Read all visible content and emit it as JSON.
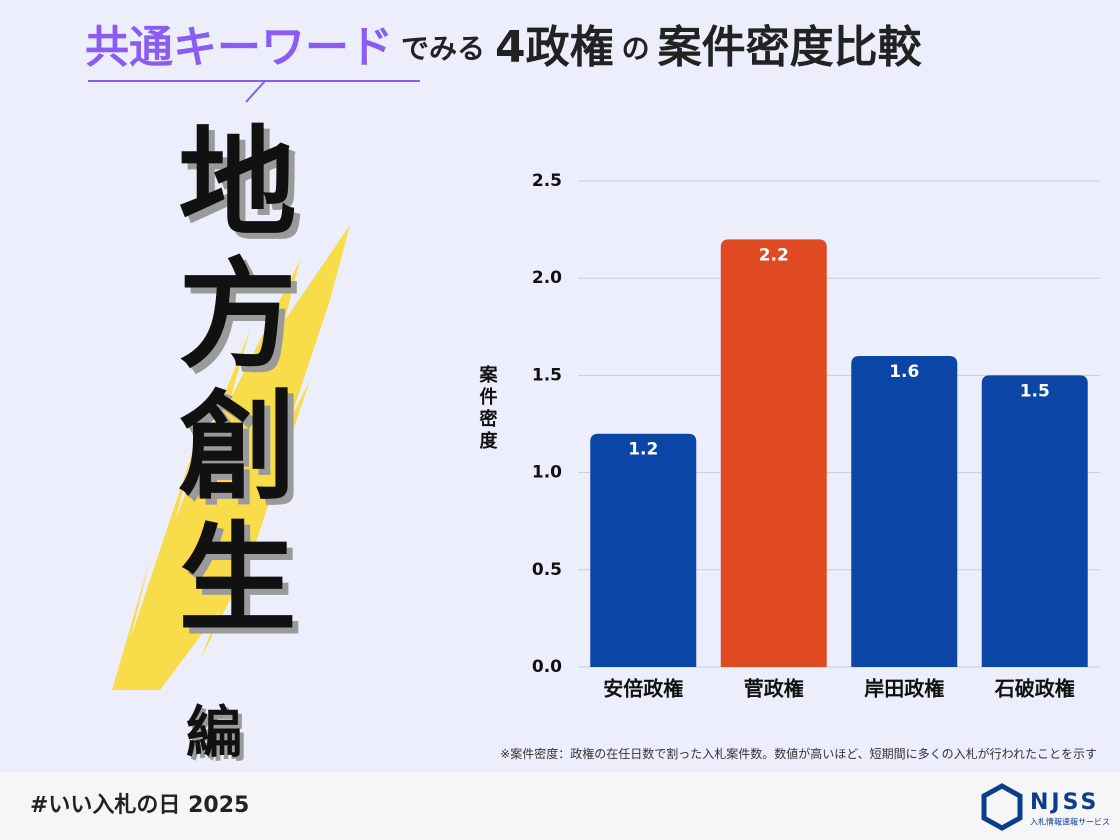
{
  "header": {
    "keyword": "共通キーワード",
    "text1": "でみる",
    "count": "4政権",
    "particle": "の",
    "text2": "案件密度比較"
  },
  "theme": {
    "title": "地方創生",
    "suffix": "編"
  },
  "chart_data": {
    "type": "bar",
    "y_label": "案件密度",
    "categories": [
      "安倍政権",
      "菅政権",
      "岸田政権",
      "石破政権"
    ],
    "values": [
      1.2,
      2.2,
      1.6,
      1.5
    ],
    "colors": [
      "#0b46a6",
      "#e04a22",
      "#0b46a6",
      "#0b46a6"
    ],
    "ylim": [
      0,
      2.5
    ],
    "yticks": [
      {
        "value": 0,
        "label": "0.0"
      },
      0.5,
      {
        "value": 1,
        "label": "1.0"
      },
      1.5,
      {
        "value": 2,
        "label": "2.0"
      },
      2.5
    ],
    "grid": true,
    "note": "※案件密度：政権の在任日数で割った入札案件数。数値が高いほど、短期間に多くの入札が行われたことを示す"
  },
  "footer": {
    "hashtag": "#いい入札の日 2025",
    "logo": "NJSS",
    "logo_sub": "入札情報速報サービス"
  }
}
